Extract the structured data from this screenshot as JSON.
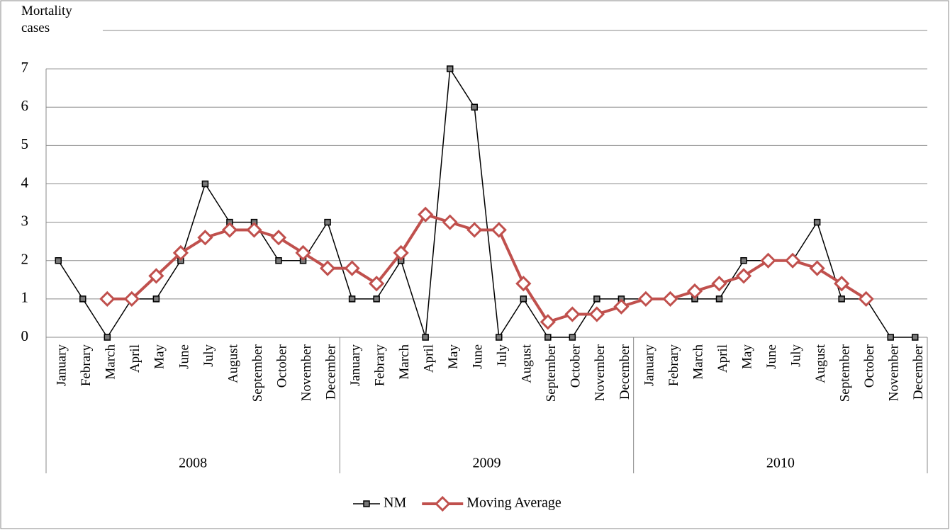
{
  "chart_data": {
    "type": "line",
    "y_label": "Mortality cases",
    "categories": [
      "January",
      "Febrary",
      "March",
      "April",
      "May",
      "June",
      "July",
      "August",
      "September",
      "October",
      "November",
      "December",
      "January",
      "Febrary",
      "March",
      "April",
      "May",
      "June",
      "July",
      "August",
      "September",
      "October",
      "November",
      "December",
      "January",
      "Febrary",
      "March",
      "April",
      "May",
      "June",
      "July",
      "August",
      "September",
      "October",
      "November",
      "December"
    ],
    "groups": [
      "2008",
      "2009",
      "2010"
    ],
    "series": [
      {
        "name": "NM",
        "color": "#000000",
        "marker": "square",
        "values": [
          2,
          1,
          0,
          1,
          1,
          2,
          4,
          3,
          3,
          2,
          2,
          3,
          1,
          1,
          2,
          0,
          7,
          6,
          0,
          1,
          0,
          0,
          1,
          1,
          1,
          1,
          1,
          1,
          2,
          2,
          2,
          3,
          1,
          1,
          0,
          0
        ]
      },
      {
        "name": "Moving Average",
        "color": "#c0504d",
        "marker": "diamond",
        "values": [
          null,
          null,
          1,
          1,
          1.6,
          2.2,
          2.6,
          2.8,
          2.8,
          2.6,
          2.2,
          1.8,
          1.8,
          1.4,
          2.2,
          3.2,
          3,
          2.8,
          2.8,
          1.4,
          0.4,
          0.6,
          0.6,
          0.8,
          1,
          1,
          1.2,
          1.4,
          1.6,
          2,
          2,
          1.8,
          1.4,
          1,
          null,
          null
        ]
      }
    ],
    "ylim": [
      0,
      8
    ],
    "yticks": [
      0,
      1,
      2,
      3,
      4,
      5,
      6,
      7
    ],
    "grid": true,
    "legend": "bottom"
  }
}
